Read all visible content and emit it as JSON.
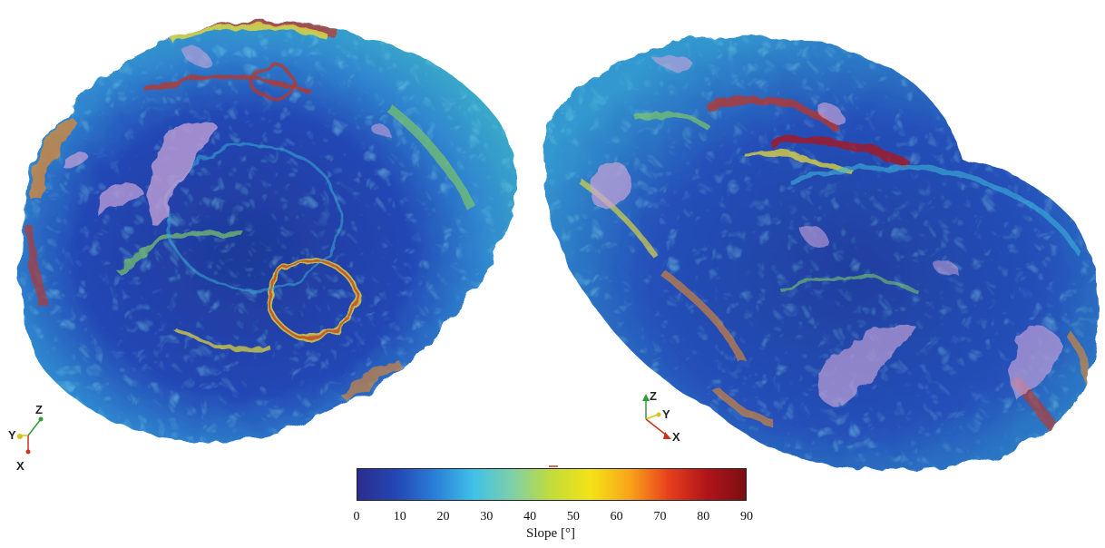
{
  "triad_left": {
    "z": "Z",
    "y": "Y",
    "x": "X"
  },
  "triad_right": {
    "z": "Z",
    "y": "Y",
    "x": "X"
  },
  "colorbar": {
    "min": 0,
    "max": 90,
    "ticks": [
      "0",
      "10",
      "20",
      "30",
      "40",
      "50",
      "60",
      "70",
      "80",
      "90"
    ],
    "title": "Slope [°]",
    "colormap": [
      "#2b2d8f",
      "#2346b4",
      "#2a7fd6",
      "#3fc1e8",
      "#7fd0a8",
      "#c2dc3a",
      "#f3e317",
      "#f9a51a",
      "#e8401c",
      "#b01419",
      "#7a0f12"
    ]
  },
  "colors": {
    "dark_blue": "#1f3c9a",
    "mid_blue": "#2f6fd0",
    "cyan": "#39b3d8",
    "green": "#7cc66a",
    "yellow": "#e6d83b",
    "orange": "#e98a2a",
    "red": "#c8321e",
    "lilac": "#c9a4d8"
  }
}
